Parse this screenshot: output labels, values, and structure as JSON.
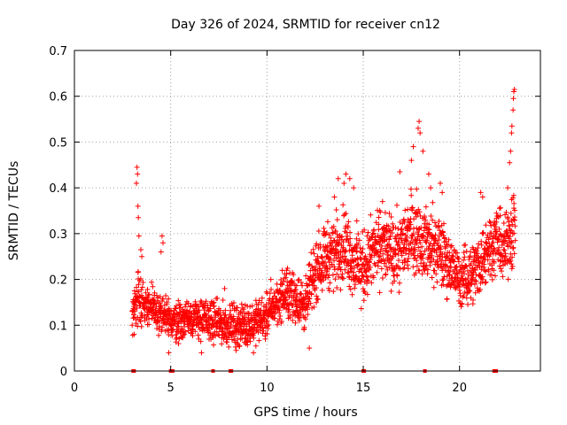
{
  "chart_data": {
    "type": "scatter",
    "title": "Day 326 of 2024, SRMTID for receiver cn12",
    "xlabel": "GPS time / hours",
    "ylabel": "SRMTID / TECUs",
    "xlim": [
      0,
      24.2
    ],
    "ylim": [
      0,
      0.7
    ],
    "xticks": [
      0,
      5,
      10,
      15,
      20
    ],
    "yticks": [
      0,
      0.1,
      0.2,
      0.3,
      0.4,
      0.5,
      0.6,
      0.7
    ],
    "ytick_labels": [
      "0",
      "0.1",
      "0.2",
      "0.3",
      "0.4",
      "0.5",
      "0.6",
      "0.7"
    ],
    "grid": true,
    "marker": "+",
    "color": "#ff0000",
    "zero_markers_x": [
      3.05,
      3.1,
      5.0,
      5.1,
      7.2,
      8.1,
      8.15,
      15.0,
      15.05,
      18.2,
      21.8,
      21.85,
      21.9
    ],
    "series": [
      {
        "name": "SRMTID",
        "envelope": {
          "x": [
            3.0,
            3.3,
            3.5,
            4.0,
            4.5,
            5.0,
            5.5,
            6.0,
            7.0,
            8.0,
            9.0,
            10.0,
            10.5,
            11.0,
            11.5,
            12.0,
            12.5,
            13.0,
            13.5,
            14.0,
            14.5,
            15.0,
            15.5,
            16.0,
            16.5,
            17.0,
            17.5,
            18.0,
            18.5,
            19.0,
            19.5,
            20.0,
            20.5,
            21.0,
            21.5,
            22.0,
            22.3,
            22.6,
            22.9
          ],
          "mean": [
            0.12,
            0.17,
            0.15,
            0.14,
            0.12,
            0.11,
            0.11,
            0.12,
            0.11,
            0.1,
            0.1,
            0.12,
            0.15,
            0.17,
            0.16,
            0.14,
            0.22,
            0.25,
            0.26,
            0.28,
            0.24,
            0.22,
            0.26,
            0.28,
            0.25,
            0.27,
            0.31,
            0.29,
            0.27,
            0.26,
            0.23,
            0.2,
            0.21,
            0.23,
            0.27,
            0.29,
            0.26,
            0.3,
            0.33
          ],
          "spread": [
            0.04,
            0.06,
            0.04,
            0.04,
            0.05,
            0.04,
            0.04,
            0.04,
            0.04,
            0.04,
            0.04,
            0.04,
            0.04,
            0.05,
            0.05,
            0.05,
            0.06,
            0.06,
            0.07,
            0.07,
            0.07,
            0.07,
            0.07,
            0.07,
            0.07,
            0.07,
            0.08,
            0.07,
            0.07,
            0.07,
            0.06,
            0.05,
            0.06,
            0.06,
            0.07,
            0.06,
            0.06,
            0.08,
            0.09
          ]
        },
        "points": [
          [
            3.25,
            0.445
          ],
          [
            3.28,
            0.43
          ],
          [
            3.22,
            0.41
          ],
          [
            3.3,
            0.36
          ],
          [
            3.32,
            0.335
          ],
          [
            3.35,
            0.295
          ],
          [
            3.45,
            0.265
          ],
          [
            3.5,
            0.25
          ],
          [
            4.55,
            0.295
          ],
          [
            4.6,
            0.28
          ],
          [
            4.5,
            0.26
          ],
          [
            7.8,
            0.18
          ],
          [
            10.2,
            0.2
          ],
          [
            12.7,
            0.36
          ],
          [
            13.5,
            0.38
          ],
          [
            13.7,
            0.42
          ],
          [
            14.1,
            0.43
          ],
          [
            14.3,
            0.42
          ],
          [
            14.5,
            0.4
          ],
          [
            14.0,
            0.41
          ],
          [
            16.0,
            0.37
          ],
          [
            16.9,
            0.435
          ],
          [
            17.5,
            0.46
          ],
          [
            17.6,
            0.49
          ],
          [
            17.85,
            0.53
          ],
          [
            17.9,
            0.545
          ],
          [
            17.95,
            0.52
          ],
          [
            18.1,
            0.48
          ],
          [
            18.4,
            0.43
          ],
          [
            18.5,
            0.4
          ],
          [
            19.0,
            0.41
          ],
          [
            19.1,
            0.39
          ],
          [
            21.1,
            0.39
          ],
          [
            21.2,
            0.38
          ],
          [
            22.5,
            0.4
          ],
          [
            22.6,
            0.455
          ],
          [
            22.65,
            0.48
          ],
          [
            22.7,
            0.52
          ],
          [
            22.72,
            0.535
          ],
          [
            22.78,
            0.57
          ],
          [
            22.8,
            0.595
          ],
          [
            22.82,
            0.61
          ],
          [
            22.85,
            0.615
          ],
          [
            3.1,
            0.08
          ],
          [
            4.9,
            0.04
          ],
          [
            6.6,
            0.04
          ],
          [
            8.4,
            0.045
          ],
          [
            9.3,
            0.04
          ],
          [
            12.2,
            0.05
          ]
        ]
      }
    ]
  }
}
